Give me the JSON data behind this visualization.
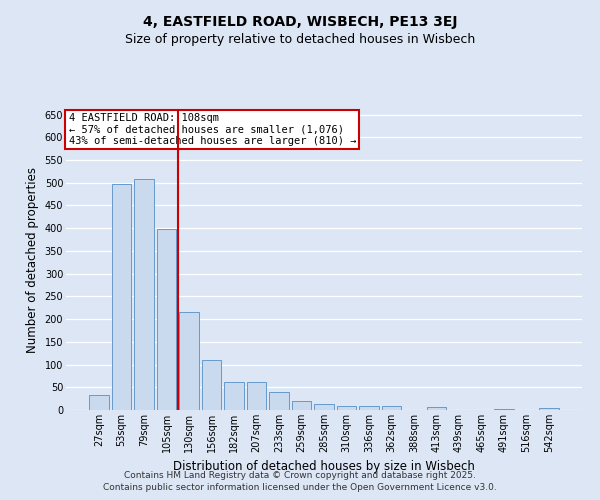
{
  "title": "4, EASTFIELD ROAD, WISBECH, PE13 3EJ",
  "subtitle": "Size of property relative to detached houses in Wisbech",
  "xlabel": "Distribution of detached houses by size in Wisbech",
  "ylabel": "Number of detached properties",
  "categories": [
    "27sqm",
    "53sqm",
    "79sqm",
    "105sqm",
    "130sqm",
    "156sqm",
    "182sqm",
    "207sqm",
    "233sqm",
    "259sqm",
    "285sqm",
    "310sqm",
    "336sqm",
    "362sqm",
    "388sqm",
    "413sqm",
    "439sqm",
    "465sqm",
    "491sqm",
    "516sqm",
    "542sqm"
  ],
  "values": [
    33,
    497,
    508,
    398,
    215,
    110,
    61,
    61,
    40,
    19,
    14,
    9,
    9,
    8,
    0,
    6,
    0,
    0,
    3,
    0,
    5
  ],
  "bar_color": "#c9d9ee",
  "bar_edge_color": "#6699cc",
  "bar_width": 0.85,
  "ylim": [
    0,
    660
  ],
  "yticks": [
    0,
    50,
    100,
    150,
    200,
    250,
    300,
    350,
    400,
    450,
    500,
    550,
    600,
    650
  ],
  "red_line_x": 3.5,
  "red_line_color": "#cc0000",
  "annotation_line1": "4 EASTFIELD ROAD: 108sqm",
  "annotation_line2": "← 57% of detached houses are smaller (1,076)",
  "annotation_line3": "43% of semi-detached houses are larger (810) →",
  "annotation_box_color": "#ffffff",
  "annotation_box_edge": "#cc0000",
  "background_color": "#dce6f5",
  "plot_bg_color": "#dce6f5",
  "grid_color": "#ffffff",
  "title_fontsize": 10,
  "subtitle_fontsize": 9,
  "axis_label_fontsize": 8.5,
  "tick_fontsize": 7,
  "annotation_fontsize": 7.5,
  "footer_line1": "Contains HM Land Registry data © Crown copyright and database right 2025.",
  "footer_line2": "Contains public sector information licensed under the Open Government Licence v3.0."
}
